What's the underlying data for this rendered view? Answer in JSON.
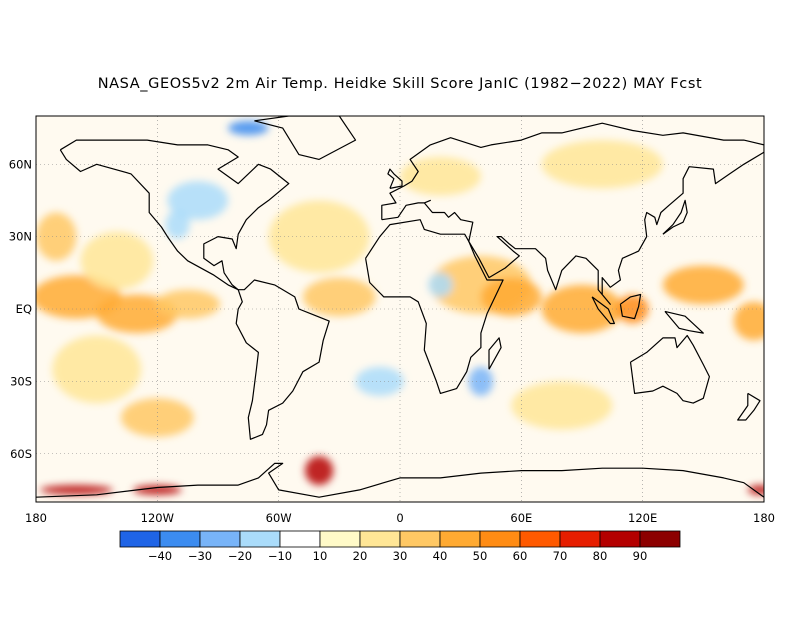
{
  "title": "NASA_GEOS5v2 2m Air Temp. Heidke Skill Score JanIC (1982−2022) MAY Fcst",
  "map": {
    "projection": "cylindrical-equidistant",
    "lon_range": [
      -180,
      180
    ],
    "lat_range": [
      -80,
      80
    ],
    "lat_labels": [
      {
        "lat": 60,
        "text": "60N"
      },
      {
        "lat": 30,
        "text": "30N"
      },
      {
        "lat": 0,
        "text": "EQ"
      },
      {
        "lat": -30,
        "text": "30S"
      },
      {
        "lat": -60,
        "text": "60S"
      }
    ],
    "lon_labels": [
      {
        "lon": -180,
        "text": "180"
      },
      {
        "lon": -120,
        "text": "120W"
      },
      {
        "lon": -60,
        "text": "60W"
      },
      {
        "lon": 0,
        "text": "0"
      },
      {
        "lon": 60,
        "text": "60E"
      },
      {
        "lon": 120,
        "text": "120E"
      },
      {
        "lon": 180,
        "text": "180"
      }
    ],
    "gridlines": "dotted"
  },
  "colorbar": {
    "labels": [
      "−40",
      "−30",
      "−20",
      "−10",
      "10",
      "20",
      "30",
      "40",
      "50",
      "60",
      "70",
      "80",
      "90"
    ],
    "colors": [
      "#1f64e6",
      "#3c8cf0",
      "#78b4f8",
      "#aadcfa",
      "#ffffff",
      "#fffac8",
      "#ffe696",
      "#ffc864",
      "#ffaa32",
      "#ff8c14",
      "#ff5a00",
      "#e61e00",
      "#b40000",
      "#8c0000"
    ]
  },
  "skill_patches": [
    {
      "lon": -160,
      "lat": 5,
      "rx": 22,
      "ry": 9,
      "color": "#ffaa32"
    },
    {
      "lon": -130,
      "lat": -2,
      "rx": 20,
      "ry": 8,
      "color": "#ffaa32"
    },
    {
      "lon": -105,
      "lat": 2,
      "rx": 16,
      "ry": 6,
      "color": "#ffc864"
    },
    {
      "lon": -170,
      "lat": 30,
      "rx": 10,
      "ry": 10,
      "color": "#ffc864"
    },
    {
      "lon": -140,
      "lat": 20,
      "rx": 18,
      "ry": 12,
      "color": "#ffe696"
    },
    {
      "lon": -150,
      "lat": -25,
      "rx": 22,
      "ry": 14,
      "color": "#ffe696"
    },
    {
      "lon": -120,
      "lat": -45,
      "rx": 18,
      "ry": 8,
      "color": "#ffc864"
    },
    {
      "lon": -40,
      "lat": 30,
      "rx": 25,
      "ry": 15,
      "color": "#ffe696"
    },
    {
      "lon": -30,
      "lat": 5,
      "rx": 18,
      "ry": 8,
      "color": "#ffc864"
    },
    {
      "lon": 40,
      "lat": 10,
      "rx": 25,
      "ry": 12,
      "color": "#ffc864"
    },
    {
      "lon": 55,
      "lat": 5,
      "rx": 15,
      "ry": 8,
      "color": "#ffaa32"
    },
    {
      "lon": 90,
      "lat": 0,
      "rx": 20,
      "ry": 10,
      "color": "#ffaa32"
    },
    {
      "lon": 115,
      "lat": 0,
      "rx": 8,
      "ry": 6,
      "color": "#ff8c14"
    },
    {
      "lon": 150,
      "lat": 10,
      "rx": 20,
      "ry": 8,
      "color": "#ffaa32"
    },
    {
      "lon": 175,
      "lat": -5,
      "rx": 10,
      "ry": 8,
      "color": "#ffaa32"
    },
    {
      "lon": 80,
      "lat": -40,
      "rx": 25,
      "ry": 10,
      "color": "#ffe696"
    },
    {
      "lon": 20,
      "lat": 55,
      "rx": 20,
      "ry": 8,
      "color": "#ffe696"
    },
    {
      "lon": 100,
      "lat": 60,
      "rx": 30,
      "ry": 10,
      "color": "#ffe696"
    },
    {
      "lon": -100,
      "lat": 45,
      "rx": 15,
      "ry": 8,
      "color": "#aadcfa"
    },
    {
      "lon": 40,
      "lat": -30,
      "rx": 6,
      "ry": 6,
      "color": "#78b4f8"
    },
    {
      "lon": 20,
      "lat": 10,
      "rx": 6,
      "ry": 5,
      "color": "#aadcfa"
    },
    {
      "lon": -10,
      "lat": -30,
      "rx": 12,
      "ry": 6,
      "color": "#aadcfa"
    },
    {
      "lon": -110,
      "lat": 35,
      "rx": 6,
      "ry": 6,
      "color": "#aadcfa"
    },
    {
      "lon": -75,
      "lat": 75,
      "rx": 10,
      "ry": 3,
      "color": "#3c8cf0"
    },
    {
      "lon": -40,
      "lat": -67,
      "rx": 7,
      "ry": 6,
      "color": "#b40000"
    },
    {
      "lon": -160,
      "lat": -75,
      "rx": 18,
      "ry": 2,
      "color": "#b40000"
    },
    {
      "lon": -120,
      "lat": -75,
      "rx": 12,
      "ry": 2,
      "color": "#b40000"
    },
    {
      "lon": 178,
      "lat": -75,
      "rx": 6,
      "ry": 2,
      "color": "#b40000"
    }
  ],
  "coastlines": [
    {
      "name": "north-america",
      "points": [
        [
          -168,
          66
        ],
        [
          -160,
          70
        ],
        [
          -140,
          70
        ],
        [
          -125,
          70
        ],
        [
          -110,
          68
        ],
        [
          -95,
          68
        ],
        [
          -85,
          66
        ],
        [
          -80,
          63
        ],
        [
          -90,
          58
        ],
        [
          -80,
          52
        ],
        [
          -70,
          60
        ],
        [
          -64,
          58
        ],
        [
          -55,
          52
        ],
        [
          -65,
          45
        ],
        [
          -70,
          42
        ],
        [
          -76,
          37
        ],
        [
          -80,
          31
        ],
        [
          -81,
          25
        ],
        [
          -83,
          29
        ],
        [
          -90,
          30
        ],
        [
          -97,
          27
        ],
        [
          -97,
          21
        ],
        [
          -92,
          18
        ],
        [
          -88,
          20
        ],
        [
          -87,
          15
        ],
        [
          -83,
          10
        ],
        [
          -80,
          8
        ],
        [
          -85,
          10
        ],
        [
          -92,
          14
        ],
        [
          -105,
          20
        ],
        [
          -110,
          24
        ],
        [
          -115,
          30
        ],
        [
          -118,
          34
        ],
        [
          -124,
          40
        ],
        [
          -124,
          48
        ],
        [
          -133,
          56
        ],
        [
          -150,
          60
        ],
        [
          -158,
          57
        ],
        [
          -165,
          62
        ],
        [
          -168,
          66
        ]
      ]
    },
    {
      "name": "greenland",
      "points": [
        [
          -72,
          78
        ],
        [
          -55,
          80
        ],
        [
          -30,
          80
        ],
        [
          -22,
          70
        ],
        [
          -40,
          62
        ],
        [
          -50,
          64
        ],
        [
          -58,
          75
        ],
        [
          -72,
          78
        ]
      ]
    },
    {
      "name": "south-america",
      "points": [
        [
          -80,
          8
        ],
        [
          -77,
          8
        ],
        [
          -72,
          12
        ],
        [
          -62,
          10
        ],
        [
          -52,
          5
        ],
        [
          -50,
          0
        ],
        [
          -44,
          -2
        ],
        [
          -35,
          -5
        ],
        [
          -38,
          -13
        ],
        [
          -40,
          -22
        ],
        [
          -48,
          -26
        ],
        [
          -53,
          -34
        ],
        [
          -58,
          -39
        ],
        [
          -65,
          -42
        ],
        [
          -66,
          -48
        ],
        [
          -68,
          -52
        ],
        [
          -74,
          -54
        ],
        [
          -75,
          -45
        ],
        [
          -73,
          -38
        ],
        [
          -71,
          -25
        ],
        [
          -70,
          -18
        ],
        [
          -76,
          -14
        ],
        [
          -81,
          -6
        ],
        [
          -80,
          0
        ],
        [
          -78,
          3
        ],
        [
          -80,
          8
        ]
      ]
    },
    {
      "name": "africa",
      "points": [
        [
          -17,
          21
        ],
        [
          -10,
          30
        ],
        [
          -5,
          35
        ],
        [
          10,
          37
        ],
        [
          12,
          33
        ],
        [
          20,
          31
        ],
        [
          32,
          31
        ],
        [
          34,
          28
        ],
        [
          37,
          22
        ],
        [
          43,
          12
        ],
        [
          51,
          12
        ],
        [
          43,
          -2
        ],
        [
          40,
          -10
        ],
        [
          40,
          -16
        ],
        [
          35,
          -20
        ],
        [
          33,
          -26
        ],
        [
          28,
          -33
        ],
        [
          20,
          -35
        ],
        [
          18,
          -30
        ],
        [
          12,
          -17
        ],
        [
          13,
          -6
        ],
        [
          9,
          3
        ],
        [
          5,
          5
        ],
        [
          -8,
          5
        ],
        [
          -15,
          11
        ],
        [
          -17,
          21
        ]
      ]
    },
    {
      "name": "europe-asia",
      "points": [
        [
          -9,
          37
        ],
        [
          -9,
          43
        ],
        [
          -2,
          44
        ],
        [
          -5,
          48
        ],
        [
          2,
          51
        ],
        [
          6,
          53
        ],
        [
          9,
          57
        ],
        [
          5,
          62
        ],
        [
          15,
          68
        ],
        [
          25,
          71
        ],
        [
          40,
          67
        ],
        [
          45,
          68
        ],
        [
          60,
          70
        ],
        [
          70,
          73
        ],
        [
          80,
          73
        ],
        [
          100,
          77
        ],
        [
          115,
          74
        ],
        [
          130,
          72
        ],
        [
          140,
          73
        ],
        [
          160,
          70
        ],
        [
          170,
          70
        ],
        [
          180,
          68
        ],
        [
          180,
          65
        ],
        [
          170,
          60
        ],
        [
          163,
          56
        ],
        [
          156,
          52
        ],
        [
          155,
          58
        ],
        [
          143,
          59
        ],
        [
          140,
          54
        ],
        [
          140,
          48
        ],
        [
          133,
          43
        ],
        [
          129,
          40
        ],
        [
          127,
          35
        ],
        [
          126,
          38
        ],
        [
          122,
          40
        ],
        [
          121,
          37
        ],
        [
          122,
          30
        ],
        [
          118,
          24
        ],
        [
          110,
          21
        ],
        [
          108,
          16
        ],
        [
          109,
          12
        ],
        [
          104,
          9
        ],
        [
          100,
          13
        ],
        [
          100,
          6
        ],
        [
          104,
          2
        ],
        [
          98,
          8
        ],
        [
          98,
          16
        ],
        [
          92,
          21
        ],
        [
          87,
          22
        ],
        [
          80,
          16
        ],
        [
          77,
          8
        ],
        [
          73,
          16
        ],
        [
          72,
          21
        ],
        [
          67,
          25
        ],
        [
          57,
          25
        ],
        [
          54,
          27
        ],
        [
          50,
          30
        ],
        [
          48,
          30
        ],
        [
          56,
          24
        ],
        [
          59,
          22
        ],
        [
          52,
          17
        ],
        [
          44,
          13
        ],
        [
          39,
          21
        ],
        [
          34,
          28
        ],
        [
          36,
          36
        ],
        [
          30,
          37
        ],
        [
          27,
          40
        ],
        [
          24,
          38
        ],
        [
          22,
          40
        ],
        [
          20,
          40
        ],
        [
          16,
          40
        ],
        [
          12,
          44
        ],
        [
          15,
          45
        ],
        [
          12,
          44
        ],
        [
          9,
          44
        ],
        [
          3,
          43
        ],
        [
          -1,
          38
        ],
        [
          -9,
          37
        ]
      ]
    },
    {
      "name": "uk",
      "points": [
        [
          -5,
          50
        ],
        [
          1,
          51
        ],
        [
          1,
          53
        ],
        [
          -3,
          56
        ],
        [
          -5,
          58
        ],
        [
          -6,
          56
        ],
        [
          -3,
          54
        ],
        [
          -5,
          50
        ]
      ]
    },
    {
      "name": "madagascar",
      "points": [
        [
          44,
          -25
        ],
        [
          50,
          -16
        ],
        [
          49,
          -12
        ],
        [
          44,
          -17
        ],
        [
          44,
          -25
        ]
      ]
    },
    {
      "name": "australia",
      "points": [
        [
          114,
          -22
        ],
        [
          122,
          -18
        ],
        [
          130,
          -12
        ],
        [
          136,
          -12
        ],
        [
          137,
          -16
        ],
        [
          142,
          -11
        ],
        [
          145,
          -15
        ],
        [
          150,
          -23
        ],
        [
          153,
          -28
        ],
        [
          150,
          -37
        ],
        [
          145,
          -39
        ],
        [
          140,
          -38
        ],
        [
          137,
          -35
        ],
        [
          130,
          -32
        ],
        [
          125,
          -34
        ],
        [
          116,
          -35
        ],
        [
          114,
          -22
        ]
      ]
    },
    {
      "name": "borneo",
      "points": [
        [
          109,
          2
        ],
        [
          114,
          5
        ],
        [
          119,
          6
        ],
        [
          118,
          1
        ],
        [
          116,
          -4
        ],
        [
          110,
          -3
        ],
        [
          109,
          2
        ]
      ]
    },
    {
      "name": "sumatra",
      "points": [
        [
          95,
          5
        ],
        [
          103,
          0
        ],
        [
          106,
          -6
        ],
        [
          104,
          -6
        ],
        [
          98,
          0
        ],
        [
          95,
          5
        ]
      ]
    },
    {
      "name": "new-guinea",
      "points": [
        [
          131,
          -1
        ],
        [
          141,
          -3
        ],
        [
          150,
          -10
        ],
        [
          143,
          -9
        ],
        [
          138,
          -8
        ],
        [
          131,
          -1
        ]
      ]
    },
    {
      "name": "japan",
      "points": [
        [
          130,
          31
        ],
        [
          135,
          34
        ],
        [
          140,
          36
        ],
        [
          142,
          40
        ],
        [
          141,
          45
        ],
        [
          139,
          40
        ],
        [
          135,
          35
        ],
        [
          130,
          31
        ]
      ]
    },
    {
      "name": "new-zealand",
      "points": [
        [
          172,
          -35
        ],
        [
          178,
          -38
        ],
        [
          175,
          -42
        ],
        [
          171,
          -46
        ],
        [
          167,
          -46
        ],
        [
          172,
          -40
        ],
        [
          172,
          -35
        ]
      ]
    },
    {
      "name": "antarctica-west",
      "points": [
        [
          -180,
          -78
        ],
        [
          -150,
          -77
        ],
        [
          -120,
          -74
        ],
        [
          -100,
          -73
        ],
        [
          -80,
          -73
        ],
        [
          -70,
          -70
        ],
        [
          -62,
          -64
        ],
        [
          -58,
          -64
        ],
        [
          -65,
          -68
        ],
        [
          -60,
          -75
        ],
        [
          -40,
          -78
        ],
        [
          -20,
          -75
        ],
        [
          0,
          -70
        ],
        [
          20,
          -70
        ],
        [
          40,
          -68
        ],
        [
          60,
          -67
        ],
        [
          80,
          -67
        ],
        [
          100,
          -66
        ],
        [
          120,
          -66
        ],
        [
          140,
          -67
        ],
        [
          160,
          -70
        ],
        [
          170,
          -72
        ],
        [
          180,
          -78
        ]
      ]
    }
  ]
}
